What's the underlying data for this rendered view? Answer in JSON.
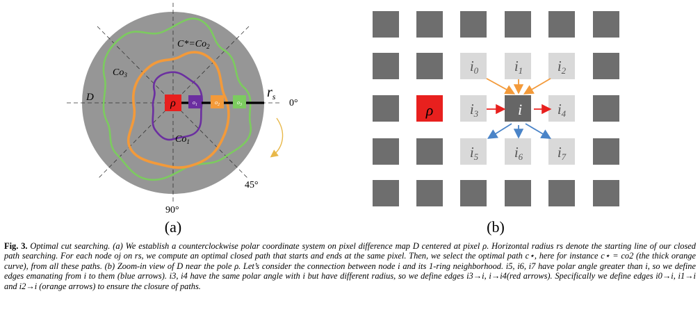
{
  "panel_a": {
    "map_label": "D",
    "curve_labels": {
      "co3": "Co",
      "co3_sub": "3",
      "cstar_prefix": "C*=Co",
      "cstar_sub": "2",
      "co1": "Co",
      "co1_sub": "1"
    },
    "radius_label": "r",
    "radius_sub": "s",
    "angle_0": "0°",
    "angle_45": "45°",
    "angle_90": "90°",
    "pole_label": "ρ",
    "nodes": [
      "o1",
      "o2",
      "o3"
    ],
    "node_colors": {
      "pole": "#e8201e",
      "o1": "#6b2fa0",
      "o2": "#f39a3a",
      "o3": "#7ccb5f"
    },
    "panel_label": "(a)"
  },
  "panel_b": {
    "pole_label": "ρ",
    "center_label": "i",
    "neighbors": [
      "i0",
      "i1",
      "i2",
      "i3",
      "i4",
      "i5",
      "i6",
      "i7"
    ],
    "arrow_colors": {
      "red": "#e8201e",
      "orange": "#f39a3a",
      "blue": "#4a84c8"
    },
    "panel_label": "(b)"
  },
  "caption": {
    "fig_number": "Fig. 3.",
    "title": "Optimal cut searching.",
    "body": "(a) We establish a counterclockwise polar coordinate system on pixel difference map D centered at pixel ρ. Horizontal radius rs denote the starting line of our closed path searching. For each node oj on rs, we compute an optimal closed path that starts and ends at the same pixel. Then, we select the optimal path c⋆, here for instance c⋆ = co2 (the thick orange curve), from all these paths. (b) Zoom-in view of D near the pole ρ. Let’s consider the connection between node i and its 1-ring neighborhood. i5, i6, i7 have polar angle greater than i, so we define edges emanating from i to them (blue arrows). i3, i4 have the same polar angle with i but have different radius, so we define edges i3→i, i→i4(red arrows). Specifically we define edges i0→i, i1→i and i2→i (orange arrows) to ensure the closure of paths."
  }
}
